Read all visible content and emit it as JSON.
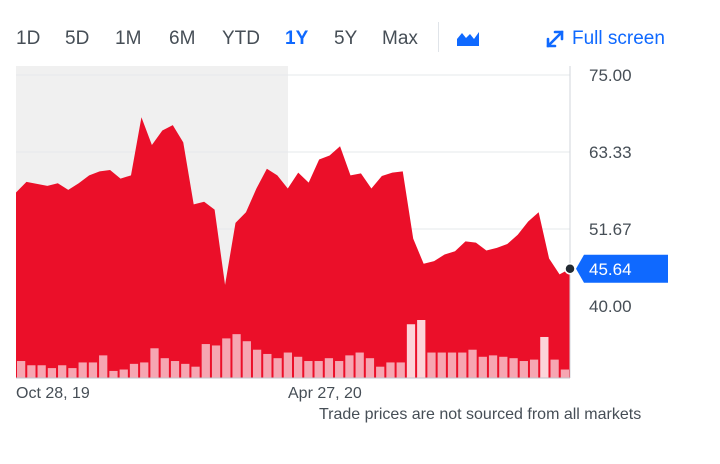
{
  "toolbar": {
    "ranges": [
      {
        "label": "1D",
        "active": false
      },
      {
        "label": "5D",
        "active": false
      },
      {
        "label": "1M",
        "active": false
      },
      {
        "label": "6M",
        "active": false
      },
      {
        "label": "YTD",
        "active": false
      },
      {
        "label": "1Y",
        "active": true
      },
      {
        "label": "5Y",
        "active": false
      },
      {
        "label": "Max",
        "active": false
      }
    ],
    "chart_type_icon": "mountain-chart-icon",
    "fullscreen_label": "Full screen",
    "fullscreen_icon": "expand-arrows-icon"
  },
  "colors": {
    "accent": "#0f69ff",
    "area_fill": "#eb0f29",
    "volume_bar": "#f6a6b2",
    "volume_bar_high": "#fcd4d9",
    "shaded_region": "#f0f0f0",
    "gridline": "#e6e8eb",
    "text": "#464e56"
  },
  "chart_data": {
    "type": "area",
    "title": "",
    "xlabel": "",
    "ylabel": "",
    "x_tick_labels": [
      "Oct 28, 19",
      "Apr 27, 20"
    ],
    "y_tick_labels": [
      "75.00",
      "63.33",
      "51.67",
      "40.00"
    ],
    "ylim": [
      40,
      75
    ],
    "y_axis_side": "right",
    "grid": true,
    "current_price": 45.64,
    "current_price_label": "45.64",
    "series": [
      {
        "values": [
          57.2,
          58.8,
          58.5,
          58.2,
          58.6,
          57.6,
          58.6,
          59.8,
          60.4,
          60.6,
          59.3,
          59.8,
          68.6,
          64.4,
          66.6,
          67.4,
          64.8,
          55.4,
          55.8,
          54.6,
          43.2,
          52.6,
          54.2,
          57.8,
          60.8,
          59.8,
          57.8,
          60.2,
          58.7,
          62.2,
          62.8,
          64.2,
          59.8,
          60.1,
          57.8,
          59.7,
          60.2,
          60.4,
          50.2,
          46.4,
          46.8,
          47.8,
          48.3,
          49.8,
          49.6,
          48.4,
          48.8,
          49.4,
          50.8,
          52.8,
          54.2,
          47.2,
          44.8,
          45.64
        ]
      }
    ],
    "volume": [
      12,
      9,
      9,
      7,
      9,
      7,
      11,
      11,
      16,
      5,
      6,
      10,
      11,
      21,
      14,
      12,
      10,
      8,
      24,
      23,
      28,
      31,
      26,
      20,
      17,
      14,
      18,
      15,
      12,
      12,
      14,
      12,
      16,
      18,
      14,
      8,
      11,
      11,
      38,
      41,
      18,
      18,
      18,
      18,
      20,
      15,
      16,
      15,
      14,
      12,
      13,
      29,
      13,
      6
    ],
    "volume_high_bars": [
      38,
      39,
      51
    ]
  },
  "footer": {
    "note": "Trade prices are not sourced from all markets"
  }
}
